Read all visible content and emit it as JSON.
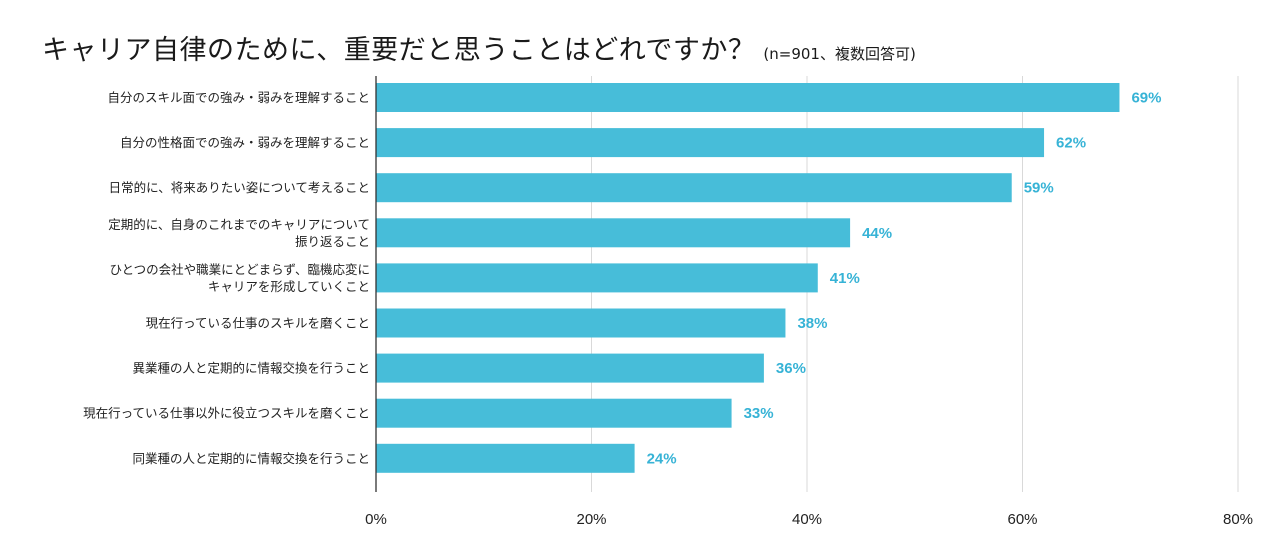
{
  "chart_data": {
    "type": "bar",
    "orientation": "horizontal",
    "title": "キャリア自律のために、重要だと思うことはどれですか？",
    "subtitle": "(n=901、複数回答可)",
    "categories": [
      [
        "自分のスキル面での強み・弱みを理解すること"
      ],
      [
        "自分の性格面での強み・弱みを理解すること"
      ],
      [
        "日常的に、将来ありたい姿について考えること"
      ],
      [
        "定期的に、自身のこれまでのキャリアについて",
        "振り返ること"
      ],
      [
        "ひとつの会社や職業にとどまらず、臨機応変に",
        "キャリアを形成していくこと"
      ],
      [
        "現在行っている仕事のスキルを磨くこと"
      ],
      [
        "異業種の人と定期的に情報交換を行うこと"
      ],
      [
        "現在行っている仕事以外に役立つスキルを磨くこと"
      ],
      [
        "同業種の人と定期的に情報交換を行うこと"
      ]
    ],
    "values": [
      69,
      62,
      59,
      44,
      41,
      38,
      36,
      33,
      24
    ],
    "value_labels": [
      "69%",
      "62%",
      "59%",
      "44%",
      "41%",
      "38%",
      "36%",
      "33%",
      "24%"
    ],
    "xlim": [
      0,
      80
    ],
    "xticks": [
      0,
      20,
      40,
      60,
      80
    ],
    "xtick_labels": [
      "0%",
      "20%",
      "40%",
      "60%",
      "80%"
    ],
    "grid": "vertical",
    "legend": "none",
    "bar_color": "#47bdd9",
    "label_color": "#37b3d6",
    "grid_color": "#d9d9d9",
    "axis_color": "#333333"
  }
}
